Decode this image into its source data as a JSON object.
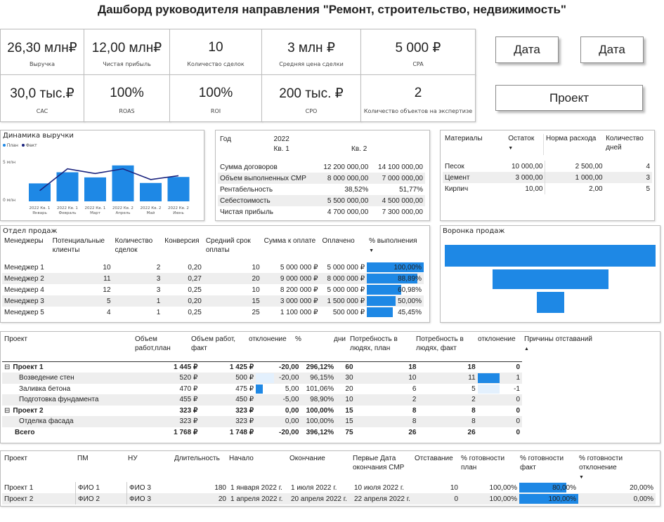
{
  "title": "Дашборд руководителя направления \"Ремонт, строительство, недвижимость\"",
  "kpis_top": [
    {
      "value": "26,30 млн₽",
      "label": "Выручка"
    },
    {
      "value": "12,00 млн₽",
      "label": "Чистая прибыль"
    },
    {
      "value": "10",
      "label": "Количество сделок"
    },
    {
      "value": "3 млн ₽",
      "label": "Средняя цена сделки"
    },
    {
      "value": "5 000 ₽",
      "label": "CPA"
    }
  ],
  "kpis_bottom": [
    {
      "value": "30,0 тыс.₽",
      "label": "CAC"
    },
    {
      "value": "100%",
      "label": "ROAS"
    },
    {
      "value": "100%",
      "label": "ROI"
    },
    {
      "value": "200 тыс. ₽",
      "label": "CPO"
    },
    {
      "value": "2",
      "label": "Количество объектов на экспертизе"
    }
  ],
  "buttons": {
    "date1": "Дата",
    "date2": "Дата",
    "project": "Проект"
  },
  "revenue": {
    "title": "Динамика выручки",
    "legend": [
      "План",
      "Факт"
    ],
    "yticks": [
      "5 млн",
      "0 млн"
    ]
  },
  "chart_data": {
    "type": "bar",
    "title": "Динамика выручки",
    "categories": [
      "2022 Кв. 1 Январь",
      "2022 Кв. 1 Февраль",
      "2022 Кв. 1 Март",
      "2022 Кв. 2 Апрель",
      "2022 Кв. 2 Май",
      "2022 Кв. 2 Июнь"
    ],
    "category_lines": [
      [
        "2022 Кв. 1",
        "Январь"
      ],
      [
        "2022 Кв. 1",
        "Февраль"
      ],
      [
        "2022 Кв. 1",
        "Март"
      ],
      [
        "2022 Кв. 2",
        "Апрель"
      ],
      [
        "2022 Кв. 2",
        "Май"
      ],
      [
        "2022 Кв. 2",
        "Июнь"
      ]
    ],
    "series": [
      {
        "name": "План",
        "kind": "bar",
        "color": "#1e88e5",
        "values": [
          4.2,
          6.8,
          5.6,
          8.4,
          4.3,
          5.7
        ]
      },
      {
        "name": "Факт",
        "kind": "line",
        "color": "#1a237e",
        "values": [
          2.5,
          7.6,
          6.5,
          7.6,
          5.1,
          6.0
        ]
      }
    ],
    "ylim": [
      0,
      10
    ],
    "legend_position": "top-left"
  },
  "fin": {
    "header": {
      "col0": "Год",
      "year": "2022",
      "q1": "Кв. 1",
      "q2": "Кв. 2"
    },
    "rows": [
      {
        "label": "Сумма договоров",
        "q1": "12 200 000,00",
        "q2": "14 100 000,00"
      },
      {
        "label": "Объем выполненных СМР",
        "q1": "8 000 000,00",
        "q2": "7 000 000,00"
      },
      {
        "label": "Рентабельность",
        "q1": "38,52%",
        "q2": "51,77%"
      },
      {
        "label": "Себестоимость",
        "q1": "5 500 000,00",
        "q2": "4 500 000,00"
      },
      {
        "label": "Чистая прибыль",
        "q1": "4 700 000,00",
        "q2": "7 300 000,00"
      }
    ]
  },
  "materials": {
    "headers": [
      "Материалы",
      "Остаток",
      "Норма расхода",
      "Количество дней"
    ],
    "rows": [
      {
        "name": "Песок",
        "stock": "10 000,00",
        "norm": "2 500,00",
        "days": "4"
      },
      {
        "name": "Цемент",
        "stock": "3 000,00",
        "norm": "1 000,00",
        "days": "3"
      },
      {
        "name": "Кирпич",
        "stock": "10,00",
        "norm": "2,00",
        "days": "5"
      }
    ]
  },
  "sales": {
    "title": "Отдел продаж",
    "headers": [
      "Менеджеры",
      "Потенциальные клиенты",
      "Количество сделок",
      "Конверсия",
      "Средний срок оплаты",
      "Сумма к оплате",
      "Оплачено",
      "% выполнения"
    ],
    "rows": [
      {
        "m": "Менеджер 1",
        "pc": "10",
        "deals": "2",
        "conv": "0,20",
        "term": "10",
        "sum": "5 000 000 ₽",
        "paid": "5 000 000 ₽",
        "pct": "100,00%",
        "pctv": 100
      },
      {
        "m": "Менеджер 2",
        "pc": "11",
        "deals": "3",
        "conv": "0,27",
        "term": "20",
        "sum": "9 000 000 ₽",
        "paid": "8 000 000 ₽",
        "pct": "88,89%",
        "pctv": 88.89
      },
      {
        "m": "Менеджер 4",
        "pc": "12",
        "deals": "3",
        "conv": "0,25",
        "term": "10",
        "sum": "8 200 000 ₽",
        "paid": "5 000 000 ₽",
        "pct": "60,98%",
        "pctv": 60.98
      },
      {
        "m": "Менеджер 3",
        "pc": "5",
        "deals": "1",
        "conv": "0,20",
        "term": "15",
        "sum": "3 000 000 ₽",
        "paid": "1 500 000 ₽",
        "pct": "50,00%",
        "pctv": 50
      },
      {
        "m": "Менеджер 5",
        "pc": "4",
        "deals": "1",
        "conv": "0,25",
        "term": "25",
        "sum": "1 100 000 ₽",
        "paid": "500 000 ₽",
        "pct": "45,45%",
        "pctv": 45.45
      }
    ]
  },
  "funnel": {
    "title": "Воронка продаж",
    "values": [
      1.0,
      0.55,
      0.13
    ]
  },
  "works": {
    "headers": [
      "Проект",
      "Объем работ,план",
      "Объем работ, факт",
      "отклонение",
      "%",
      "дни",
      "Потребность в людях, план",
      "Потребность в людях, факт",
      "отклонение",
      "Причины отставаний"
    ],
    "rows": [
      {
        "level": 0,
        "toggle": "⊟",
        "name": "Проект 1",
        "plan": "1 445 ₽",
        "fact": "1 425 ₽",
        "dev": "-20,00",
        "pct": "296,12%",
        "days": "60",
        "pp": "18",
        "pf": "18",
        "pd": "0",
        "devbar": 0,
        "pdbar": 0
      },
      {
        "level": 1,
        "toggle": "",
        "name": "Возведение стен",
        "plan": "520 ₽",
        "fact": "500 ₽",
        "dev": "-20,00",
        "pct": "96,15%",
        "days": "30",
        "pp": "10",
        "pf": "11",
        "pd": "1",
        "devbar": 1,
        "pdbar": 1
      },
      {
        "level": 1,
        "toggle": "",
        "name": "Заливка бетона",
        "plan": "470 ₽",
        "fact": "475 ₽",
        "dev": "5,00",
        "pct": "101,06%",
        "days": "20",
        "pp": "6",
        "pf": "5",
        "pd": "-1",
        "devbar": 2,
        "pdbar": 2
      },
      {
        "level": 1,
        "toggle": "",
        "name": "Подготовка фундамента",
        "plan": "455 ₽",
        "fact": "450 ₽",
        "dev": "-5,00",
        "pct": "98,90%",
        "days": "10",
        "pp": "2",
        "pf": "2",
        "pd": "0",
        "devbar": 0,
        "pdbar": 0
      },
      {
        "level": 0,
        "toggle": "⊟",
        "name": "Проект 2",
        "plan": "323 ₽",
        "fact": "323 ₽",
        "dev": "0,00",
        "pct": "100,00%",
        "days": "15",
        "pp": "8",
        "pf": "8",
        "pd": "0",
        "devbar": 0,
        "pdbar": 0
      },
      {
        "level": 1,
        "toggle": "",
        "name": "Отделка фасада",
        "plan": "323 ₽",
        "fact": "323 ₽",
        "dev": "0,00",
        "pct": "100,00%",
        "days": "15",
        "pp": "8",
        "pf": "8",
        "pd": "0",
        "devbar": 0,
        "pdbar": 0
      },
      {
        "level": 2,
        "toggle": "",
        "name": "Всего",
        "plan": "1 768 ₽",
        "fact": "1 748 ₽",
        "dev": "-20,00",
        "pct": "396,12%",
        "days": "75",
        "pp": "26",
        "pf": "26",
        "pd": "0",
        "devbar": 0,
        "pdbar": 0
      }
    ]
  },
  "projects": {
    "headers": [
      "Проект",
      "ПМ",
      "НУ",
      "Длительность",
      "Начало",
      "Окончание",
      "Первые Дата окончания СМР",
      "Отставание",
      "% готовности план",
      "% готовности факт",
      "% готовности отклонение"
    ],
    "rows": [
      {
        "p": "Проект 1",
        "pm": "ФИО 1",
        "nu": "ФИО 3",
        "dur": "180",
        "start": "1 января 2022 г.",
        "end": "1 июля 2022 г.",
        "first": "10 июля 2022 г.",
        "lag": "10",
        "plan": "100,00%",
        "fact": "80,00%",
        "factv": 80,
        "dev": "20,00%"
      },
      {
        "p": "Проект 2",
        "pm": "ФИО 2",
        "nu": "ФИО 3",
        "dur": "20",
        "start": "1 апреля 2022 г.",
        "end": "20 апреля 2022 г.",
        "first": "22 апреля 2022 г.",
        "lag": "0",
        "plan": "100,00%",
        "fact": "100,00%",
        "factv": 100,
        "dev": "0,00%"
      }
    ]
  }
}
